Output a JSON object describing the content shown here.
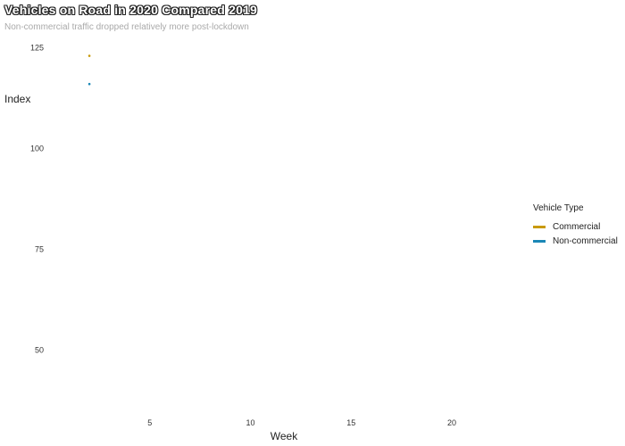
{
  "chart_data": {
    "type": "line",
    "title": "Vehicles on Road in 2020 Compared 2019",
    "subtitle": "Non-commercial traffic dropped relatively more post-lockdown",
    "xlabel": "Week",
    "ylabel": "Index",
    "xlim": [
      0,
      23.5
    ],
    "ylim": [
      35,
      128
    ],
    "xticks": [
      5,
      10,
      15,
      20
    ],
    "yticks": [
      50,
      75,
      100,
      125
    ],
    "legend_title": "Vehicle Type",
    "legend_position": "right",
    "series": [
      {
        "name": "Commercial",
        "color": "#C99A0C",
        "x": [
          2
        ],
        "y": [
          123
        ]
      },
      {
        "name": "Non-commercial",
        "color": "#1B87B6",
        "x": [
          2
        ],
        "y": [
          116
        ]
      }
    ]
  }
}
